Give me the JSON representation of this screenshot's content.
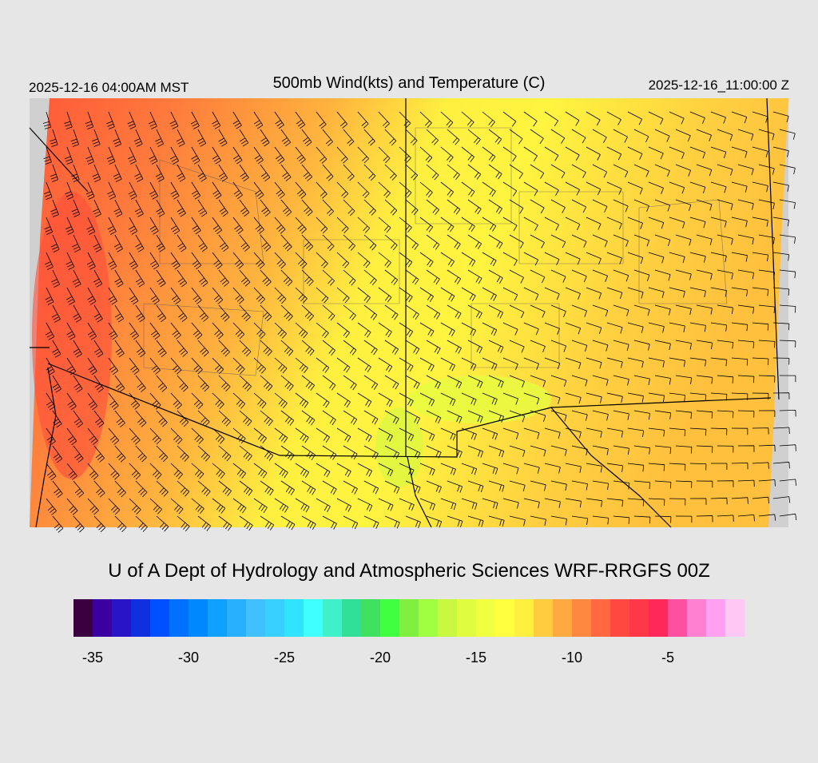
{
  "header": {
    "title": "500mb Wind(kts) and Temperature (C)",
    "local_time": "2025-12-16 04:00AM MST",
    "valid_time": "2025-12-16_11:00:00 Z"
  },
  "credit": "U of A Dept of Hydrology and Atmospheric Sciences WRF-RRGFS 00Z",
  "colorbar": {
    "range": [
      -36,
      -1
    ],
    "ticks": [
      -35,
      -30,
      -25,
      -20,
      -15,
      -10,
      -5
    ],
    "colors": [
      "#3a0040",
      "#3a00a0",
      "#2a14c8",
      "#1030e0",
      "#0050ff",
      "#0070ff",
      "#0088ff",
      "#10a0ff",
      "#28b0ff",
      "#40c0ff",
      "#38d0ff",
      "#30e4ff",
      "#40ffff",
      "#40f0c8",
      "#30e098",
      "#40e060",
      "#40ff40",
      "#80f040",
      "#a0ff40",
      "#c8f840",
      "#e0fc40",
      "#f0ff40",
      "#ffff40",
      "#fff040",
      "#ffcc40",
      "#ffaa40",
      "#ff8840",
      "#ff6840",
      "#ff4840",
      "#ff3848",
      "#ff2858",
      "#ff50a0",
      "#ff80d0",
      "#ffa0f0",
      "#ffc8f4"
    ]
  }
}
